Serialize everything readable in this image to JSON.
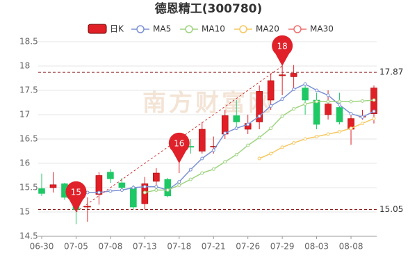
{
  "chart_data": {
    "type": "candlestick",
    "title": "德恩精工(300780)",
    "watermark": "南方财富网",
    "kline_name": "日K",
    "up_color": "#e01f26",
    "down_color": "#1ec865",
    "categories": [
      "06-30",
      null,
      null,
      "07-05",
      null,
      null,
      "07-08",
      null,
      null,
      "07-13",
      null,
      null,
      "07-18",
      null,
      null,
      "07-21",
      null,
      null,
      "07-26",
      null,
      null,
      "07-29",
      null,
      null,
      "08-03",
      null,
      null,
      "08-08",
      null,
      null
    ],
    "open": [
      15.48,
      15.5,
      15.58,
      15.4,
      15.1,
      15.36,
      15.82,
      15.6,
      15.5,
      15.17,
      15.63,
      15.67,
      16.3,
      16.35,
      16.25,
      16.35,
      16.6,
      16.98,
      16.7,
      16.85,
      17.3,
      17.8,
      17.78,
      17.55,
      17.3,
      17.0,
      17.15,
      16.7,
      16.95,
      17.02
    ],
    "close": [
      15.38,
      15.56,
      15.3,
      15.05,
      15.12,
      15.75,
      15.68,
      15.5,
      15.1,
      15.58,
      15.8,
      15.33,
      16.38,
      16.33,
      16.7,
      16.35,
      16.98,
      16.85,
      16.82,
      17.48,
      17.7,
      17.82,
      17.85,
      17.3,
      16.8,
      17.22,
      16.85,
      16.92,
      16.97,
      17.55
    ],
    "high": [
      15.79,
      15.82,
      15.6,
      15.55,
      15.3,
      15.82,
      15.88,
      15.7,
      15.55,
      15.72,
      15.9,
      15.7,
      16.55,
      16.5,
      16.85,
      16.55,
      17.1,
      17.3,
      17.0,
      17.6,
      17.85,
      18.08,
      18.02,
      17.65,
      17.45,
      17.5,
      17.45,
      17.0,
      17.1,
      17.6
    ],
    "low": [
      15.33,
      15.4,
      15.25,
      14.75,
      14.8,
      15.15,
      15.6,
      15.45,
      15.05,
      15.05,
      15.45,
      15.3,
      15.8,
      16.2,
      16.2,
      16.2,
      16.5,
      16.7,
      16.6,
      16.7,
      17.1,
      17.4,
      17.55,
      17.0,
      16.7,
      16.9,
      16.8,
      16.38,
      16.9,
      16.82
    ],
    "series": [
      {
        "name": "MA5",
        "color": "#7b91d4",
        "values": [
          null,
          null,
          null,
          null,
          15.4,
          15.4,
          15.43,
          15.45,
          15.5,
          15.52,
          15.52,
          15.45,
          15.62,
          15.87,
          16.1,
          16.27,
          16.62,
          16.72,
          16.8,
          16.97,
          17.18,
          17.32,
          17.52,
          17.63,
          17.5,
          17.4,
          17.2,
          17.02,
          16.95,
          17.07
        ]
      },
      {
        "name": "MA10",
        "color": "#9dd47f",
        "values": [
          null,
          null,
          null,
          null,
          null,
          null,
          null,
          null,
          null,
          15.4,
          15.45,
          15.45,
          15.55,
          15.67,
          15.8,
          15.88,
          16.03,
          16.18,
          16.37,
          16.53,
          16.72,
          16.97,
          17.12,
          17.22,
          17.27,
          17.27,
          17.27,
          17.27,
          17.28,
          17.3
        ]
      },
      {
        "name": "MA20",
        "color": "#f6c85f",
        "values": [
          null,
          null,
          null,
          null,
          null,
          null,
          null,
          null,
          null,
          null,
          null,
          null,
          null,
          null,
          null,
          null,
          null,
          null,
          null,
          16.1,
          16.2,
          16.33,
          16.42,
          16.5,
          16.55,
          16.6,
          16.65,
          16.72,
          16.82,
          16.92
        ]
      },
      {
        "name": "MA30",
        "color": "#ee6f6f",
        "values": [
          null,
          null,
          null,
          null,
          null,
          null,
          null,
          null,
          null,
          null,
          null,
          null,
          null,
          null,
          null,
          null,
          null,
          null,
          null,
          null,
          null,
          null,
          null,
          null,
          null,
          null,
          null,
          null,
          null,
          null
        ]
      }
    ],
    "pins": [
      15,
      16,
      18
    ],
    "price_lines": [
      17.87,
      15.05
    ],
    "ylim": [
      14.5,
      18.5
    ],
    "yticks": [
      14.5,
      15,
      15.5,
      16,
      16.5,
      17,
      17.5,
      18,
      18.5
    ],
    "grid": true
  }
}
